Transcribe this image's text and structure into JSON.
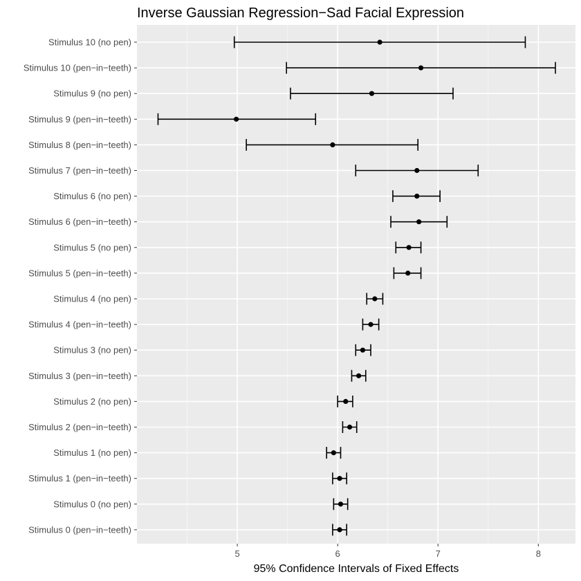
{
  "chart_data": {
    "type": "errorbar",
    "title": "Inverse Gaussian Regression−Sad Facial Expression",
    "xlabel": "95% Confidence Intervals of Fixed Effects",
    "ylabel": "",
    "xlim": [
      4.0,
      8.37
    ],
    "x_ticks": [
      5,
      6,
      7,
      8
    ],
    "x_tick_labels": [
      "5",
      "6",
      "7",
      "8"
    ],
    "grid": true,
    "categories": [
      "Stimulus 10 (no pen)",
      "Stimulus 10 (pen−in−teeth)",
      "Stimulus 9 (no pen)",
      "Stimulus 9 (pen−in−teeth)",
      "Stimulus 8 (pen−in−teeth)",
      "Stimulus 7 (pen−in−teeth)",
      "Stimulus 6 (no pen)",
      "Stimulus 6 (pen−in−teeth)",
      "Stimulus 5 (no pen)",
      "Stimulus 5 (pen−in−teeth)",
      "Stimulus 4 (no pen)",
      "Stimulus 4 (pen−in−teeth)",
      "Stimulus 3 (no pen)",
      "Stimulus 3 (pen−in−teeth)",
      "Stimulus 2 (no pen)",
      "Stimulus 2 (pen−in−teeth)",
      "Stimulus 1 (no pen)",
      "Stimulus 1 (pen−in−teeth)",
      "Stimulus 0 (no pen)",
      "Stimulus 0 (pen−in−teeth)"
    ],
    "estimates": [
      6.42,
      6.83,
      6.34,
      4.99,
      5.95,
      6.79,
      6.79,
      6.81,
      6.71,
      6.7,
      6.37,
      6.33,
      6.25,
      6.21,
      6.08,
      6.12,
      5.96,
      6.02,
      6.03,
      6.02
    ],
    "lower": [
      4.97,
      5.49,
      5.53,
      4.21,
      5.09,
      6.18,
      6.55,
      6.53,
      6.58,
      6.56,
      6.29,
      6.25,
      6.18,
      6.14,
      6.0,
      6.05,
      5.89,
      5.95,
      5.96,
      5.95
    ],
    "upper": [
      7.87,
      8.17,
      7.15,
      5.78,
      6.8,
      7.4,
      7.02,
      7.09,
      6.83,
      6.83,
      6.45,
      6.41,
      6.33,
      6.28,
      6.15,
      6.19,
      6.03,
      6.09,
      6.1,
      6.09
    ]
  }
}
